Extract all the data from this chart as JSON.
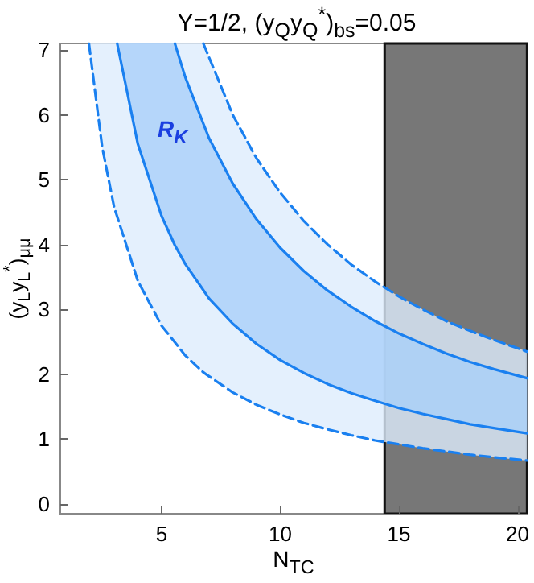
{
  "chart_data": {
    "type": "line",
    "title": "Y=1/2, (y$_{Q}$y$_{Q}$$^{*}$)$_{bs}$=0.05",
    "xlabel": "N$_{TC}$",
    "ylabel": "(y$_{L}$y$_{L}$$^{*}$)$_{μμ}$",
    "xlim": [
      0.7,
      20.4
    ],
    "ylim": [
      -0.15,
      7.1
    ],
    "xticks": [
      5,
      10,
      15,
      20
    ],
    "yticks": [
      0,
      1,
      2,
      3,
      4,
      5,
      6,
      7
    ],
    "grid": false,
    "marker": "none",
    "series": [
      {
        "color": "#1a80f0",
        "line_style": "dashed",
        "x": [
          1.94,
          2.5,
          3,
          4,
          5,
          6,
          6.76,
          8,
          9,
          10,
          11,
          12,
          13,
          14,
          15,
          16,
          17,
          18,
          19,
          20.4
        ],
        "values": [
          7.1,
          5.5,
          4.58,
          3.44,
          2.75,
          2.29,
          2.03,
          1.72,
          1.53,
          1.38,
          1.25,
          1.15,
          1.06,
          0.98,
          0.92,
          0.86,
          0.81,
          0.76,
          0.72,
          0.67
        ],
        "lower": [
          7.1,
          5.5,
          4.58,
          3.44,
          2.75,
          2.29,
          2.03,
          1.72,
          1.53,
          1.38,
          1.25,
          1.15,
          1.06,
          0.98,
          0.92,
          0.86,
          0.81,
          0.76,
          0.72,
          0.67
        ],
        "upper": [
          7.1,
          7.1,
          7.1,
          7.1,
          7.1,
          7.1,
          7.1,
          6.0,
          5.33,
          4.8,
          4.36,
          4.0,
          3.69,
          3.43,
          3.2,
          3.0,
          2.82,
          2.67,
          2.53,
          2.35
        ]
      },
      {
        "color": "#1a80f0",
        "line_style": "solid",
        "x": [
          3.13,
          4,
          5,
          5.56,
          6,
          7,
          8,
          9,
          10,
          11,
          12,
          13,
          14,
          15,
          16,
          17,
          18,
          19,
          20.4
        ],
        "values": [
          7.1,
          5.55,
          4.44,
          3.99,
          3.7,
          3.17,
          2.78,
          2.47,
          2.22,
          2.02,
          1.85,
          1.71,
          1.59,
          1.48,
          1.39,
          1.31,
          1.23,
          1.17,
          1.09
        ],
        "lower": [
          7.1,
          5.55,
          4.44,
          3.99,
          3.7,
          3.17,
          2.78,
          2.47,
          2.22,
          2.02,
          1.85,
          1.71,
          1.59,
          1.48,
          1.39,
          1.31,
          1.23,
          1.17,
          1.09
        ],
        "upper": [
          7.1,
          7.1,
          7.1,
          7.1,
          6.58,
          5.64,
          4.94,
          4.39,
          3.95,
          3.59,
          3.29,
          3.04,
          2.82,
          2.63,
          2.47,
          2.32,
          2.19,
          2.08,
          1.94
        ]
      },
      {
        "color": "#1a80f0",
        "line_style": "dashed",
        "x": [
          6.76,
          8,
          9,
          10,
          11,
          12,
          13,
          14,
          15,
          16,
          17,
          18,
          19,
          20.4
        ],
        "values": [
          7.1,
          6.0,
          5.33,
          4.8,
          4.36,
          4.0,
          3.69,
          3.43,
          3.2,
          3.0,
          2.82,
          2.67,
          2.53,
          2.35
        ]
      },
      {
        "color": "#1a80f0",
        "line_style": "solid",
        "x": [
          5.56,
          6,
          7,
          8,
          9,
          10,
          11,
          12,
          13,
          14,
          15,
          16,
          17,
          18,
          19,
          20.4
        ],
        "values": [
          7.1,
          6.58,
          5.64,
          4.94,
          4.39,
          3.95,
          3.59,
          3.29,
          3.04,
          2.82,
          2.63,
          2.47,
          2.32,
          2.19,
          2.08,
          1.94
        ]
      }
    ],
    "bands": [
      {
        "axis": "x",
        "from": 14.4,
        "to": 20.4,
        "color": "#777777"
      }
    ],
    "annotations": [
      "R$_{K}$"
    ]
  }
}
